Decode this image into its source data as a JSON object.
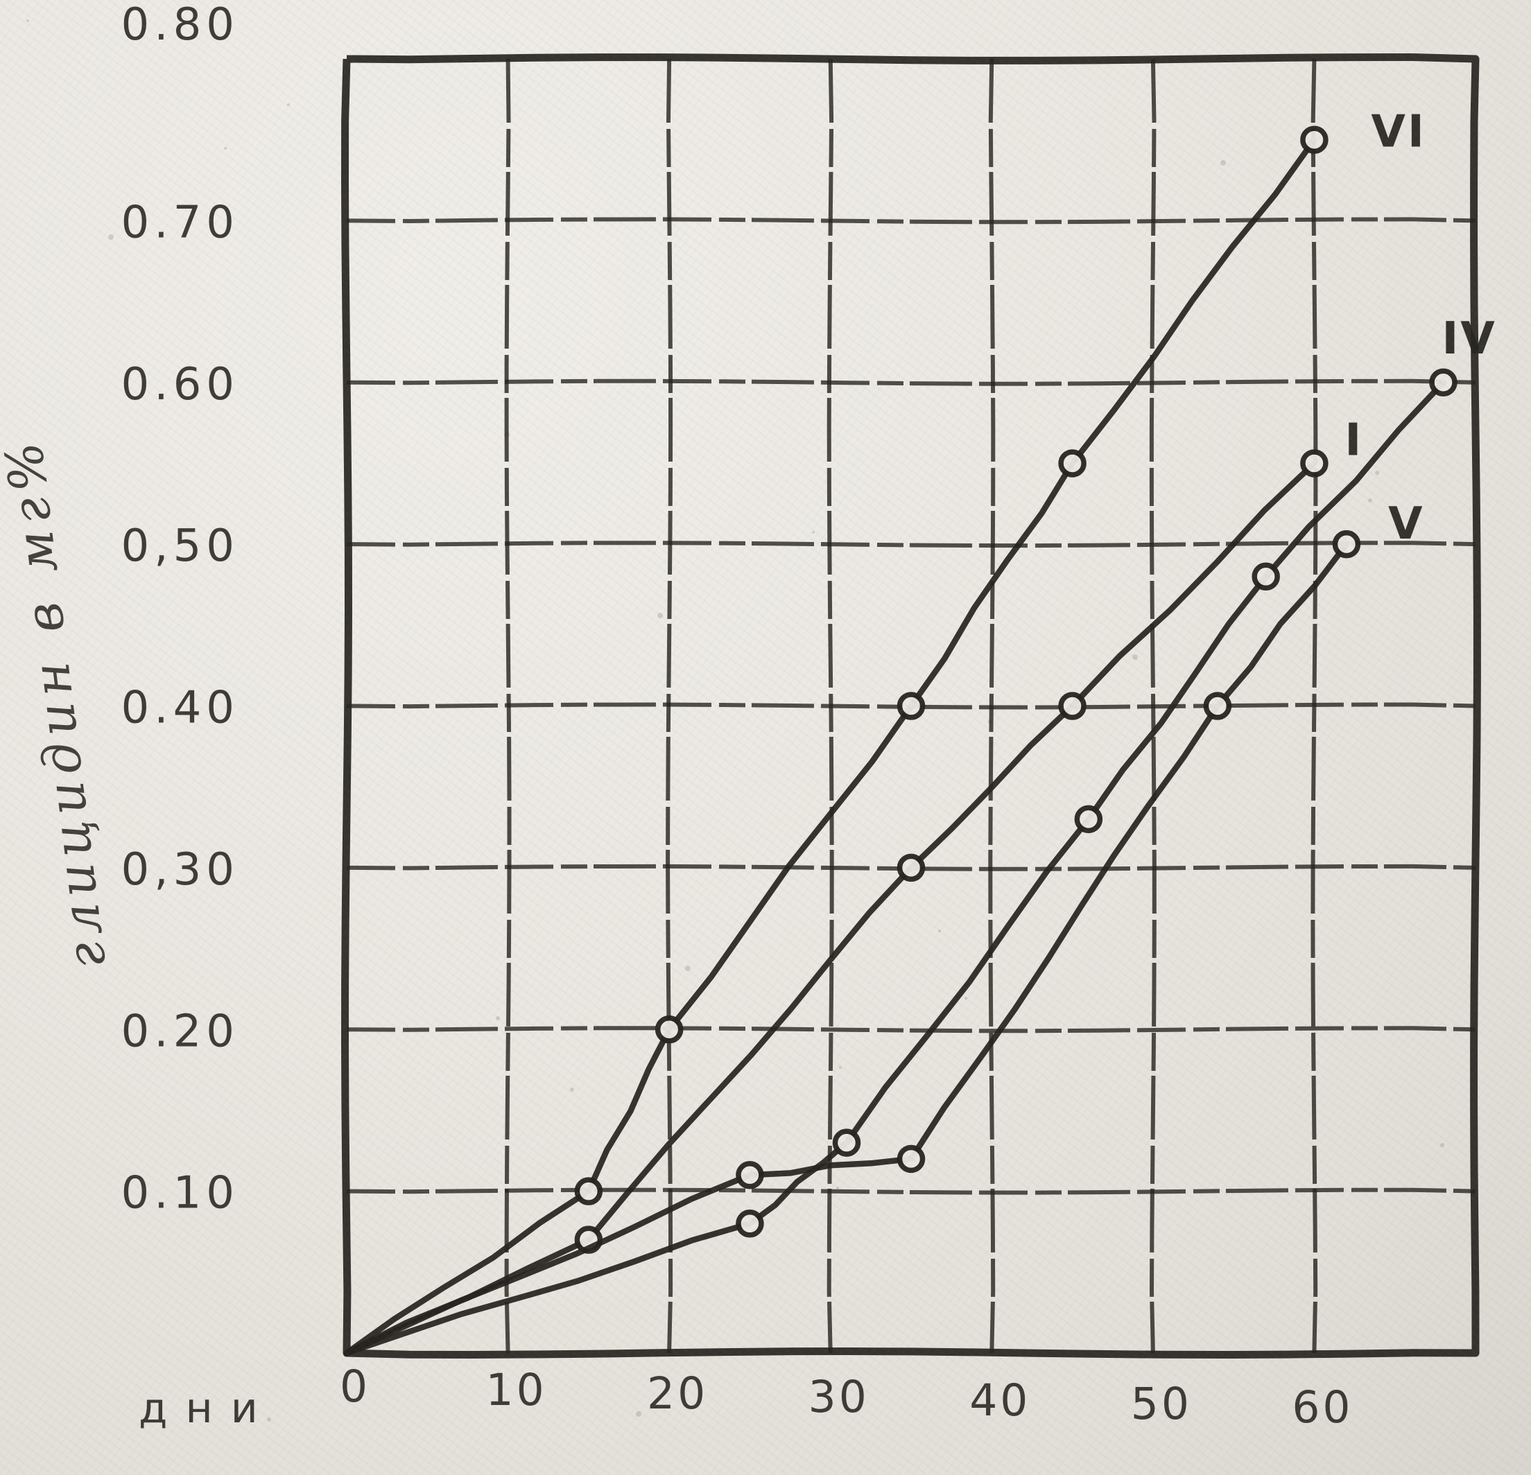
{
  "chart_data": {
    "type": "line",
    "title": "",
    "xlabel": "дни",
    "ylabel": "глицидин в мг%",
    "xlim": [
      0,
      70
    ],
    "ylim": [
      0,
      0.8
    ],
    "grid": "on",
    "marker": "open-circle",
    "legend_position": "labels-at-line-ends",
    "x_ticks": [
      {
        "label": "0",
        "value": 0
      },
      {
        "label": "10",
        "value": 10
      },
      {
        "label": "20",
        "value": 20
      },
      {
        "label": "30",
        "value": 30
      },
      {
        "label": "40",
        "value": 40
      },
      {
        "label": "50",
        "value": 50
      },
      {
        "label": "60",
        "value": 60
      }
    ],
    "y_ticks": [
      {
        "label": "0.80",
        "value": 0.8
      },
      {
        "label": "0.70",
        "value": 0.7
      },
      {
        "label": "0.60",
        "value": 0.6
      },
      {
        "label": "0,50",
        "value": 0.5
      },
      {
        "label": "0.40",
        "value": 0.4
      },
      {
        "label": "0,30",
        "value": 0.3
      },
      {
        "label": "0.20",
        "value": 0.2
      },
      {
        "label": "0.10",
        "value": 0.1
      }
    ],
    "series": [
      {
        "name": "VI",
        "points": [
          [
            0,
            0
          ],
          [
            15,
            0.1
          ],
          [
            20,
            0.2
          ],
          [
            35,
            0.4
          ],
          [
            45,
            0.55
          ],
          [
            60,
            0.75
          ]
        ]
      },
      {
        "name": "I",
        "points": [
          [
            0,
            0
          ],
          [
            15,
            0.07
          ],
          [
            35,
            0.3
          ],
          [
            45,
            0.4
          ],
          [
            60,
            0.55
          ]
        ]
      },
      {
        "name": "IV",
        "points": [
          [
            0,
            0
          ],
          [
            25,
            0.08
          ],
          [
            31,
            0.13
          ],
          [
            46,
            0.33
          ],
          [
            57,
            0.48
          ],
          [
            68,
            0.6
          ]
        ]
      },
      {
        "name": "V",
        "points": [
          [
            0,
            0
          ],
          [
            25,
            0.11
          ],
          [
            35,
            0.12
          ],
          [
            54,
            0.4
          ],
          [
            62,
            0.5
          ]
        ]
      }
    ]
  }
}
